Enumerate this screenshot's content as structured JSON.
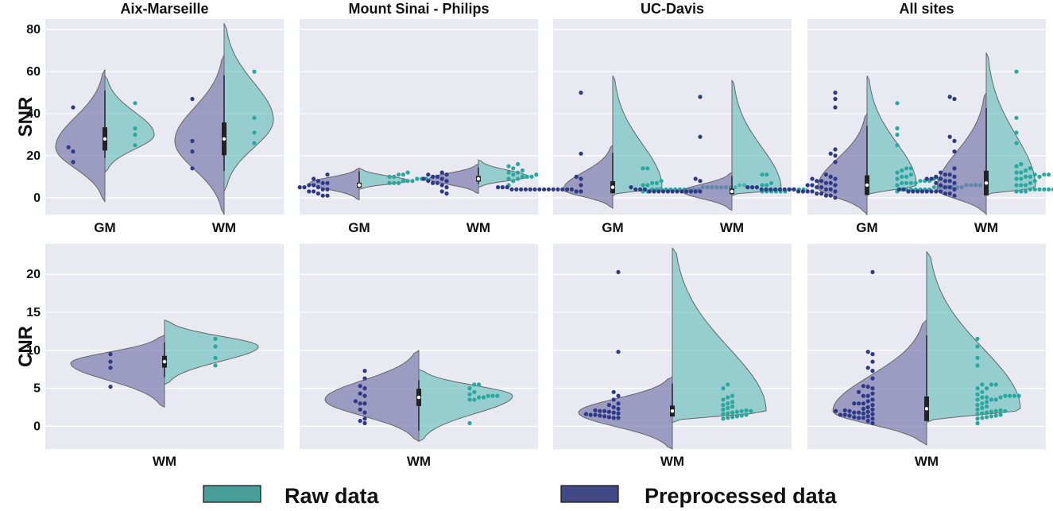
{
  "colors": {
    "raw": "#5fbcb9",
    "preprocessed": "#7b79ae",
    "raw_dot": "#2aa89f",
    "pre_dot": "#2e3a87",
    "panel_bg": "#e9e9f2",
    "grid": "#ffffff",
    "legend_raw_fill": "#4a9e9a",
    "legend_pre_fill": "#414a86"
  },
  "legend": {
    "items": [
      {
        "label": "Raw data",
        "key": "raw"
      },
      {
        "label": "Preprocessed data",
        "key": "preprocessed"
      }
    ]
  },
  "chart_data": [
    {
      "type": "violin",
      "metric": "SNR",
      "ylabel": "SNR",
      "ylim": [
        -8,
        85
      ],
      "yticks": [
        0,
        20,
        40,
        60,
        80
      ],
      "panels": [
        {
          "title": "Aix-Marseille",
          "categories": [
            "GM",
            "WM"
          ],
          "groups": [
            {
              "category": "GM",
              "pre_range": [
                -2,
                61
              ],
              "raw_range": [
                12,
                58
              ],
              "pre_peak": 24,
              "raw_peak": 30,
              "median": 28,
              "pre_points": [
                43,
                24,
                22,
                17
              ],
              "raw_points": [
                45,
                33,
                30,
                25
              ]
            },
            {
              "category": "WM",
              "pre_range": [
                -8,
                68
              ],
              "raw_range": [
                3,
                83
              ],
              "pre_peak": 27,
              "raw_peak": 37,
              "median": 28,
              "pre_points": [
                47,
                27,
                22,
                14
              ],
              "raw_points": [
                60,
                38,
                31,
                26
              ]
            }
          ]
        },
        {
          "title": "Mount Sinai - Philips",
          "categories": [
            "GM",
            "WM"
          ],
          "groups": [
            {
              "category": "GM",
              "pre_range": [
                -1,
                14
              ],
              "raw_range": [
                4,
                14
              ],
              "pre_peak": 7,
              "raw_peak": 8,
              "median": 6,
              "pre_points": [
                11,
                9,
                8,
                7,
                7,
                6,
                6,
                5,
                5,
                5,
                4,
                4,
                3,
                3,
                2,
                1,
                1
              ],
              "raw_points": [
                12,
                11,
                11,
                10,
                10,
                9,
                9,
                9,
                8,
                8,
                8,
                7,
                7,
                7
              ]
            },
            {
              "category": "WM",
              "pre_range": [
                2,
                16
              ],
              "raw_range": [
                5,
                18
              ],
              "pre_peak": 9,
              "raw_peak": 10,
              "median": 9,
              "pre_points": [
                12,
                11,
                11,
                10,
                10,
                9,
                9,
                8,
                8,
                7,
                7,
                6,
                5,
                3,
                2
              ],
              "raw_points": [
                16,
                15,
                14,
                13,
                12,
                12,
                11,
                11,
                10,
                10,
                10,
                9,
                9,
                8,
                6
              ]
            }
          ]
        },
        {
          "title": "UC-Davis",
          "categories": [
            "GM",
            "WM"
          ],
          "groups": [
            {
              "category": "GM",
              "pre_range": [
                -5,
                25
              ],
              "raw_range": [
                1,
                58
              ],
              "pre_peak": 4,
              "raw_peak": 5,
              "median": 5,
              "pre_points": [
                50,
                21,
                10,
                9,
                6,
                5,
                5,
                5,
                4,
                4,
                4,
                4,
                4,
                4,
                4,
                4,
                4,
                4,
                4,
                4,
                4,
                4,
                3,
                3
              ],
              "raw_points": [
                14,
                14,
                8,
                7,
                7,
                6,
                6,
                6,
                6,
                5,
                5,
                5,
                5,
                5,
                5,
                5,
                5,
                4,
                4,
                4,
                4,
                4,
                4,
                4,
                4,
                4,
                4,
                4,
                3,
                3
              ]
            },
            {
              "category": "WM",
              "pre_range": [
                -6,
                12
              ],
              "raw_range": [
                1,
                56
              ],
              "pre_peak": 3,
              "raw_peak": 4,
              "median": 3,
              "pre_points": [
                48,
                29,
                9,
                8,
                5,
                4,
                4,
                4,
                3,
                3,
                3,
                3,
                3,
                3,
                3,
                3,
                3,
                3,
                3,
                3
              ],
              "raw_points": [
                11,
                11,
                7,
                6,
                6,
                5,
                5,
                5,
                5,
                4,
                4,
                4,
                4,
                4,
                4,
                4,
                4,
                4,
                3,
                3,
                3,
                3,
                3,
                3
              ]
            }
          ]
        },
        {
          "title": "All sites",
          "categories": [
            "GM",
            "WM"
          ],
          "groups": [
            {
              "category": "GM",
              "pre_range": [
                -8,
                40
              ],
              "raw_range": [
                1,
                58
              ],
              "pre_peak": 5,
              "raw_peak": 6,
              "median": 6,
              "pre_points": [
                50,
                47,
                43,
                23,
                21,
                20,
                17,
                11,
                10,
                9,
                9,
                8,
                8,
                7,
                7,
                6,
                6,
                6,
                5,
                5,
                5,
                5,
                5,
                4,
                4,
                4,
                4,
                4,
                4,
                4,
                4,
                4,
                4,
                3,
                3,
                3,
                3,
                3,
                2,
                2,
                1,
                1,
                0
              ],
              "raw_points": [
                45,
                33,
                30,
                25,
                14,
                14,
                13,
                12,
                11,
                10,
                10,
                9,
                9,
                9,
                8,
                8,
                8,
                7,
                7,
                7,
                7,
                6,
                6,
                6,
                6,
                6,
                5,
                5,
                5,
                5,
                5,
                5,
                5,
                4,
                4,
                4,
                4,
                4,
                4,
                4,
                3
              ]
            },
            {
              "category": "WM",
              "pre_range": [
                -8,
                50
              ],
              "raw_range": [
                1,
                69
              ],
              "pre_peak": 4,
              "raw_peak": 5,
              "median": 7,
              "pre_points": [
                48,
                47,
                29,
                27,
                22,
                14,
                12,
                11,
                11,
                10,
                10,
                9,
                9,
                9,
                8,
                8,
                7,
                7,
                6,
                5,
                5,
                4,
                4,
                4,
                3,
                3,
                3,
                3,
                3,
                3,
                3,
                3,
                2,
                2,
                1
              ],
              "raw_points": [
                60,
                38,
                31,
                26,
                16,
                15,
                14,
                13,
                12,
                12,
                11,
                11,
                11,
                10,
                10,
                10,
                9,
                9,
                8,
                7,
                6,
                6,
                6,
                5,
                5,
                5,
                5,
                5,
                4,
                4,
                4,
                4,
                4,
                4,
                4,
                3,
                3,
                3
              ]
            }
          ]
        }
      ]
    },
    {
      "type": "violin",
      "metric": "CNR",
      "ylabel": "CNR",
      "ylim": [
        -3,
        24
      ],
      "yticks": [
        0,
        5,
        10,
        15,
        20
      ],
      "panels": [
        {
          "title": "",
          "categories": [
            "WM"
          ],
          "groups": [
            {
              "category": "WM",
              "pre_range": [
                2.5,
                12
              ],
              "raw_range": [
                5.5,
                14
              ],
              "pre_peak": 8.3,
              "raw_peak": 10.5,
              "median": 8.5,
              "pre_points": [
                9.5,
                8.5,
                7.7,
                5.2
              ],
              "raw_points": [
                11.5,
                10.5,
                9,
                8
              ]
            }
          ]
        },
        {
          "title": "",
          "categories": [
            "WM"
          ],
          "groups": [
            {
              "category": "WM",
              "pre_range": [
                -2,
                10
              ],
              "raw_range": [
                -2,
                7.5
              ],
              "pre_peak": 3.5,
              "raw_peak": 4,
              "median": 3.8,
              "pre_points": [
                7.3,
                6.3,
                5.3,
                5,
                4.3,
                4,
                3.3,
                3,
                3,
                2.2,
                1.8,
                1,
                0.7,
                0.4
              ],
              "raw_points": [
                5.5,
                5.5,
                5,
                4.5,
                4.2,
                4,
                4,
                4,
                3.8,
                3.8,
                3.5,
                3.5,
                0.4
              ]
            }
          ]
        },
        {
          "title": "",
          "categories": [
            "WM"
          ],
          "groups": [
            {
              "category": "WM",
              "pre_range": [
                -3,
                6.5
              ],
              "raw_range": [
                0.5,
                23.5
              ],
              "pre_peak": 1.8,
              "raw_peak": 2,
              "median": 2,
              "pre_points": [
                20.3,
                9.8,
                4.5,
                4,
                3.5,
                3,
                2.8,
                2.5,
                2.3,
                2.1,
                2,
                2,
                1.9,
                1.8,
                1.7,
                1.6,
                1.5,
                1.5,
                1.4,
                1.3,
                1.2,
                1.1,
                1.1
              ],
              "raw_points": [
                5.5,
                5,
                4,
                3.8,
                3.5,
                3.2,
                3,
                2.8,
                2.6,
                2.4,
                2.2,
                2.1,
                2,
                2,
                1.9,
                1.8,
                1.7,
                1.6,
                1.5,
                1.4,
                1.3,
                1.2,
                1.1,
                1
              ]
            }
          ]
        },
        {
          "title": "",
          "categories": [
            "WM"
          ],
          "groups": [
            {
              "category": "WM",
              "pre_range": [
                -2.5,
                14
              ],
              "raw_range": [
                0.5,
                23
              ],
              "pre_peak": 2,
              "raw_peak": 2.2,
              "median": 2.3,
              "pre_points": [
                20.3,
                9.8,
                9.5,
                8.5,
                7.7,
                7.3,
                6.3,
                5.3,
                5.2,
                5,
                4.5,
                4.3,
                4,
                4,
                3.5,
                3.3,
                3,
                3,
                3,
                2.8,
                2.5,
                2.3,
                2.2,
                2.1,
                2,
                2,
                1.9,
                1.8,
                1.8,
                1.7,
                1.6,
                1.5,
                1.5,
                1.4,
                1.3,
                1.2,
                1.1,
                1.1,
                1,
                0.7,
                0.4
              ],
              "raw_points": [
                11.5,
                10.5,
                9,
                8,
                5.5,
                5.5,
                5.5,
                5,
                5,
                4.5,
                4.2,
                4,
                4,
                4,
                4,
                3.8,
                3.8,
                3.8,
                3.5,
                3.5,
                3.5,
                3.2,
                3,
                2.8,
                2.6,
                2.4,
                2.2,
                2.1,
                2,
                2,
                1.9,
                1.8,
                1.7,
                1.6,
                1.5,
                1.4,
                1.3,
                1.2,
                1.1,
                1,
                0.4
              ]
            }
          ]
        }
      ]
    }
  ]
}
